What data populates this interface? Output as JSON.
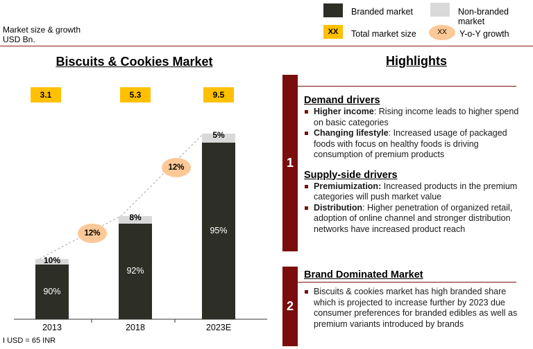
{
  "header": {
    "subtitle_line1": "Market size & growth",
    "subtitle_line2": "USD Bn."
  },
  "legend": {
    "branded": "Branded market",
    "non_branded": "Non-branded market",
    "total_box_text": "XX",
    "total": "Total market size",
    "yoy_oval_text": "XX",
    "yoy": "Y-o-Y growth"
  },
  "colors": {
    "branded": "#2d2e26",
    "non_branded": "#d9d9d9",
    "total": "#ffc000",
    "yoy": "#fbc896",
    "accent": "#7a0e0e"
  },
  "chart_data": {
    "type": "bar",
    "title": "Biscuits & Cookies Market",
    "categories": [
      "2013",
      "2018",
      "2023E"
    ],
    "series": [
      {
        "name": "Branded market",
        "values": [
          90,
          92,
          95
        ]
      },
      {
        "name": "Non-branded market",
        "values": [
          10,
          8,
          5
        ]
      }
    ],
    "branded_labels": [
      "90%",
      "92%",
      "95%"
    ],
    "non_branded_labels": [
      "10%",
      "8%",
      "5%"
    ],
    "totals": [
      3.1,
      5.3,
      9.5
    ],
    "totals_labels": [
      "3.1",
      "5.3",
      "9.5"
    ],
    "growth": [
      "12%",
      "12%"
    ],
    "footnote": "I USD = 65 INR"
  },
  "highlights": {
    "title": "Highlights",
    "section1": {
      "number": "1",
      "demand_title": "Demand drivers",
      "demand_items": [
        {
          "bold": "Higher income",
          "text": ": Rising income leads to higher spend on basic categories"
        },
        {
          "bold": "Changing lifestyle",
          "text": ": Increased usage of packaged foods with focus on healthy foods is driving consumption of premium products"
        }
      ],
      "supply_title": "Supply-side drivers",
      "supply_items": [
        {
          "bold": "Premiumization:",
          "text": " Increased products in the premium categories will push market value"
        },
        {
          "bold": "Distribution",
          "text": ": Higher penetration of organized retail, adoption of online channel and stronger distribution networks have increased product reach"
        }
      ]
    },
    "section2": {
      "number": "2",
      "title": "Brand Dominated Market",
      "items": [
        {
          "bold": "",
          "text": "Biscuits & cookies market has high branded share which is projected to increase further by 2023 due consumer preferences for branded edibles as well as premium variants introduced by brands"
        }
      ]
    }
  }
}
